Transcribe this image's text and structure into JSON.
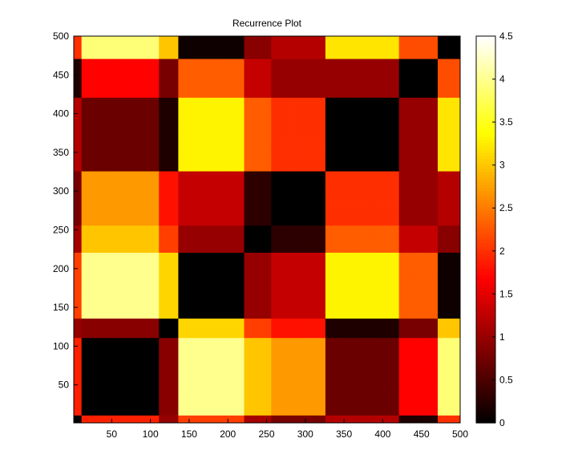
{
  "chart_data": {
    "type": "heatmap",
    "title": "Recurrence Plot",
    "xlabel": "",
    "ylabel": "",
    "xlim": [
      1,
      500
    ],
    "ylim": [
      1,
      500
    ],
    "x_ticks": [
      50,
      100,
      150,
      200,
      250,
      300,
      350,
      400,
      450,
      500
    ],
    "y_ticks": [
      50,
      100,
      150,
      200,
      250,
      300,
      350,
      400,
      450,
      500
    ],
    "colormap": "hot",
    "colorbar": {
      "range": [
        0,
        4.5
      ],
      "ticks": [
        "0",
        "0.5",
        "1",
        "1.5",
        "2",
        "2.5",
        "3",
        "3.5",
        "4",
        "4.5"
      ]
    },
    "segments": [
      {
        "start": 1,
        "end": 13,
        "level": 2.2
      },
      {
        "start": 13,
        "end": 110,
        "level": 0.3
      },
      {
        "start": 110,
        "end": 135,
        "level": 1.2
      },
      {
        "start": 135,
        "end": 220,
        "level": 4.3
      },
      {
        "start": 220,
        "end": 255,
        "level": 3.3
      },
      {
        "start": 255,
        "end": 325,
        "level": 3.0
      },
      {
        "start": 325,
        "end": 420,
        "level": 1.0
      },
      {
        "start": 420,
        "end": 470,
        "level": 2.0
      },
      {
        "start": 470,
        "end": 500,
        "level": 4.2
      }
    ]
  }
}
